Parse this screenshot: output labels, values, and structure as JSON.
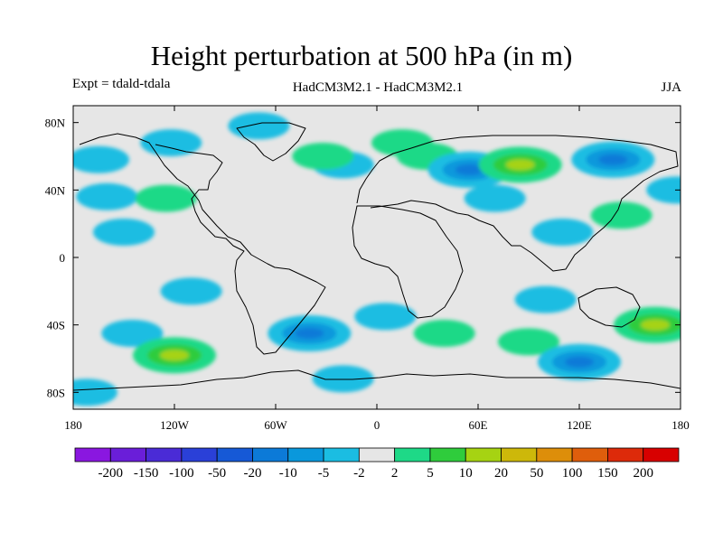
{
  "chart_data": {
    "type": "heatmap",
    "title": "Height perturbation at 500 hPa (in m)",
    "subtitle_left": "Expt = tdald-tdala",
    "subtitle_center": "HadCM3M2.1 - HadCM3M2.1",
    "subtitle_right": "JJA",
    "xlim": [
      -180,
      180
    ],
    "ylim": [
      -90,
      90
    ],
    "x_ticks": [
      {
        "value": -180,
        "label": "180"
      },
      {
        "value": -120,
        "label": "120W"
      },
      {
        "value": -60,
        "label": "60W"
      },
      {
        "value": 0,
        "label": "0"
      },
      {
        "value": 60,
        "label": "60E"
      },
      {
        "value": 120,
        "label": "120E"
      },
      {
        "value": 180,
        "label": "180"
      }
    ],
    "y_ticks": [
      {
        "value": 80,
        "label": "80N"
      },
      {
        "value": 40,
        "label": "40N"
      },
      {
        "value": 0,
        "label": "0"
      },
      {
        "value": -40,
        "label": "40S"
      },
      {
        "value": -80,
        "label": "80S"
      }
    ],
    "colorbar": {
      "levels": [
        "-200",
        "-150",
        "-100",
        "-50",
        "-20",
        "-10",
        "-5",
        "-2",
        "2",
        "5",
        "10",
        "20",
        "50",
        "100",
        "150",
        "200"
      ],
      "colors": [
        "#8a17e0",
        "#6a1ed9",
        "#4a2bd6",
        "#2a40d8",
        "#1659d6",
        "#0c7ad8",
        "#0a98dc",
        "#1bbde2",
        "#e6e6e6",
        "#1ed987",
        "#2fcc3c",
        "#a6d312",
        "#cdb80a",
        "#dd8e0a",
        "#df5e0c",
        "#dd2a0a",
        "#d80000"
      ]
    },
    "background_level": "-2 to 2",
    "anomalies": [
      {
        "lon": -165,
        "lat": 58,
        "value": -7
      },
      {
        "lon": -122,
        "lat": 68,
        "value": -7
      },
      {
        "lon": -70,
        "lat": 78,
        "value": -7
      },
      {
        "lon": -160,
        "lat": 36,
        "value": -7
      },
      {
        "lon": -125,
        "lat": 35,
        "value": 7
      },
      {
        "lon": -20,
        "lat": 55,
        "value": -7
      },
      {
        "lon": -32,
        "lat": 60,
        "value": 7
      },
      {
        "lon": -150,
        "lat": 15,
        "value": -7
      },
      {
        "lon": 15,
        "lat": 68,
        "value": 7
      },
      {
        "lon": 30,
        "lat": 60,
        "value": 7
      },
      {
        "lon": 55,
        "lat": 52,
        "value": -12
      },
      {
        "lon": 85,
        "lat": 55,
        "value": 12
      },
      {
        "lon": 140,
        "lat": 58,
        "value": -12
      },
      {
        "lon": 70,
        "lat": 35,
        "value": -7
      },
      {
        "lon": 145,
        "lat": 25,
        "value": 7
      },
      {
        "lon": 110,
        "lat": 15,
        "value": -7
      },
      {
        "lon": 178,
        "lat": 40,
        "value": -7
      },
      {
        "lon": -110,
        "lat": -20,
        "value": -7
      },
      {
        "lon": -40,
        "lat": -45,
        "value": -12
      },
      {
        "lon": -145,
        "lat": -45,
        "value": -7
      },
      {
        "lon": -120,
        "lat": -58,
        "value": 12
      },
      {
        "lon": -20,
        "lat": -72,
        "value": -7
      },
      {
        "lon": 5,
        "lat": -35,
        "value": -7
      },
      {
        "lon": 40,
        "lat": -45,
        "value": 7
      },
      {
        "lon": 90,
        "lat": -50,
        "value": 7
      },
      {
        "lon": 120,
        "lat": -62,
        "value": -12
      },
      {
        "lon": 165,
        "lat": -40,
        "value": 12
      },
      {
        "lon": -172,
        "lat": -80,
        "value": -7
      },
      {
        "lon": 100,
        "lat": -25,
        "value": -7
      }
    ]
  }
}
